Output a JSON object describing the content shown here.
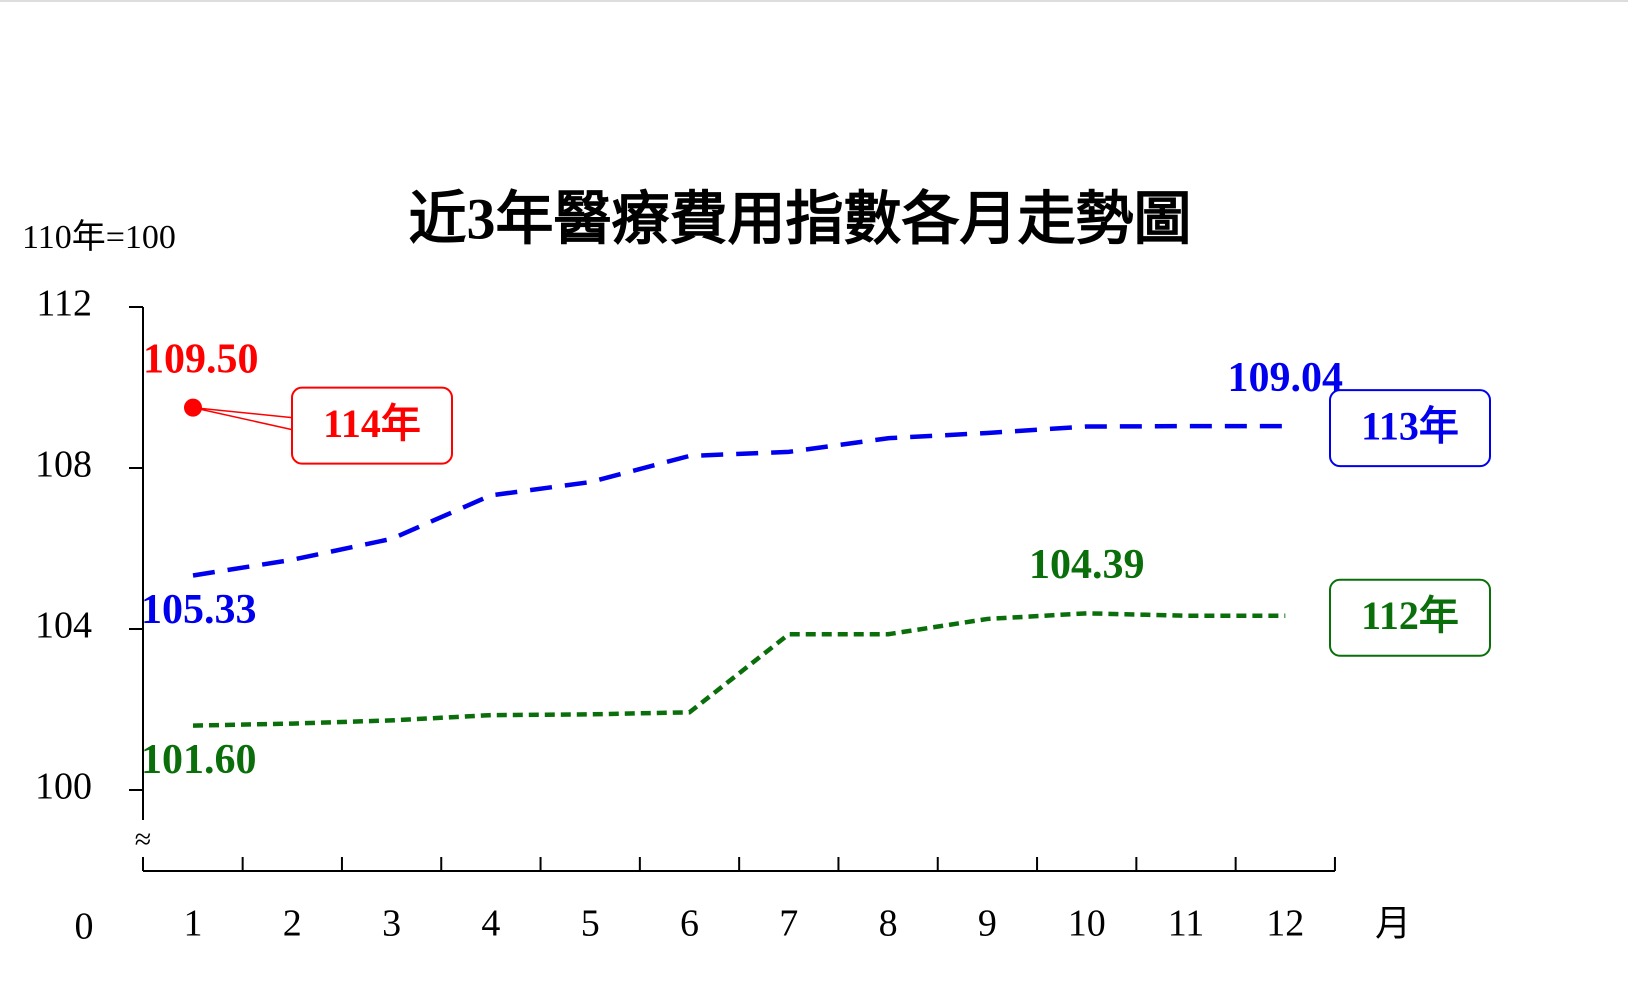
{
  "chart_data": {
    "type": "line",
    "title": "近3年醫療費用指數各月走勢圖",
    "y_label": "110年=100",
    "x_label": "月",
    "categories": [
      "1",
      "2",
      "3",
      "4",
      "5",
      "6",
      "7",
      "8",
      "9",
      "10",
      "11",
      "12"
    ],
    "ylim": [
      100,
      112
    ],
    "yticks": [
      100,
      104,
      108,
      112
    ],
    "origin_label": "0",
    "break_symbol": "≈",
    "series": [
      {
        "name": "114年",
        "color": "#ff0000",
        "values": [
          109.5,
          null,
          null,
          null,
          null,
          null,
          null,
          null,
          null,
          null,
          null,
          null
        ],
        "value_labels": [
          "109.50",
          null,
          null,
          null,
          null,
          null,
          null,
          null,
          null,
          null,
          null,
          null
        ]
      },
      {
        "name": "113年",
        "color": "#0000ee",
        "values": [
          105.33,
          105.72,
          106.24,
          107.32,
          107.65,
          108.3,
          108.4,
          108.74,
          108.87,
          109.03,
          109.04,
          109.04
        ],
        "value_labels": [
          "105.33",
          null,
          null,
          null,
          null,
          null,
          null,
          null,
          null,
          null,
          null,
          "109.04"
        ]
      },
      {
        "name": "112年",
        "color": "#0a6e0a",
        "values": [
          101.6,
          101.65,
          101.73,
          101.86,
          101.88,
          101.93,
          103.87,
          103.87,
          104.25,
          104.39,
          104.33,
          104.33
        ],
        "value_labels": [
          "101.60",
          null,
          null,
          null,
          null,
          null,
          null,
          null,
          null,
          "104.39",
          null,
          null
        ]
      }
    ]
  }
}
